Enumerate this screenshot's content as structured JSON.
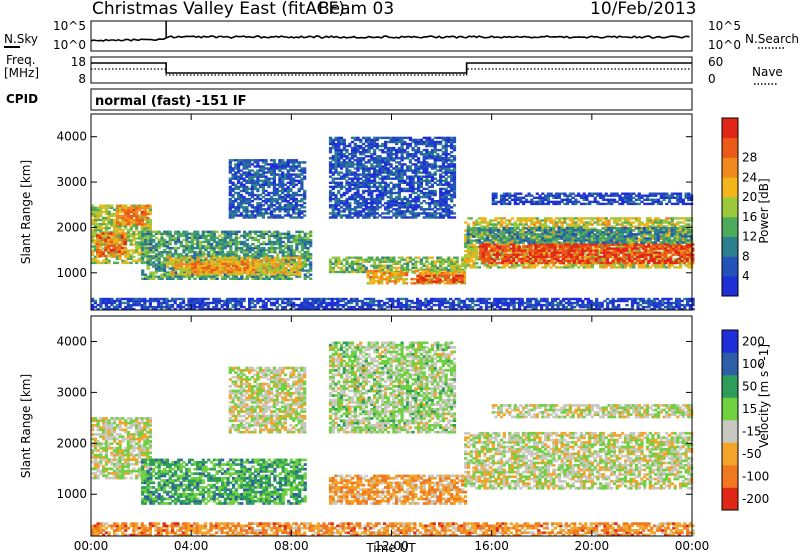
{
  "header": {
    "station": "Christmas Valley East (fitACF)",
    "beam": "Beam 03",
    "date": "10/Feb/2013"
  },
  "params": {
    "nsky_label": "N.Sky",
    "nsearch_label": "N.Search",
    "freq_label": "Freq.",
    "freq_unit": "[MHz]",
    "nave_label": "Nave",
    "cpid_label": "CPID",
    "cpid_value": "normal (fast) -151 IF",
    "noise_ticks": [
      "10^5",
      "10^0"
    ],
    "freq_ticks": [
      "18",
      "8"
    ],
    "nave_ticks": [
      "60",
      "0"
    ]
  },
  "chart_data": [
    {
      "type": "heatmap",
      "name": "power",
      "ylabel": "Slant Range [km]",
      "xlabel": "Time UT",
      "x_ticks": [
        "00:00",
        "04:00",
        "08:00",
        "12:00",
        "16:00",
        "20:00",
        "00:00"
      ],
      "y_ticks": [
        "1000",
        "2000",
        "3000",
        "4000"
      ],
      "xlim": [
        0,
        24
      ],
      "ylim": [
        180,
        4500
      ],
      "grid": false,
      "colorbar": {
        "label": "Power [dB]",
        "ticks": [
          "4",
          "8",
          "12",
          "16",
          "20",
          "24",
          "28"
        ],
        "colors": [
          "#1f2fd8",
          "#2352b8",
          "#2d7f8f",
          "#4caa5a",
          "#9cc93c",
          "#f2b51a",
          "#f08a1c",
          "#ea5b1a",
          "#e22718"
        ]
      },
      "regions": [
        {
          "t0": 0.0,
          "t1": 2.4,
          "r0": 1200,
          "r1": 2500,
          "level": 0.5
        },
        {
          "t0": 0.2,
          "t1": 1.4,
          "r0": 1350,
          "r1": 1850,
          "level": 0.78
        },
        {
          "t0": 1.0,
          "t1": 2.3,
          "r0": 2050,
          "r1": 2500,
          "level": 0.75
        },
        {
          "t0": 2.0,
          "t1": 8.8,
          "r0": 850,
          "r1": 1900,
          "level": 0.35
        },
        {
          "t0": 3.0,
          "t1": 8.3,
          "r0": 950,
          "r1": 1350,
          "level": 0.6
        },
        {
          "t0": 4.0,
          "t1": 6.5,
          "r0": 1000,
          "r1": 1250,
          "level": 0.72
        },
        {
          "t0": 9.5,
          "t1": 14.9,
          "r0": 1000,
          "r1": 1350,
          "level": 0.45
        },
        {
          "t0": 11.0,
          "t1": 14.9,
          "r0": 750,
          "r1": 1050,
          "level": 0.65
        },
        {
          "t0": 13.0,
          "t1": 14.8,
          "r0": 780,
          "r1": 930,
          "level": 0.9
        },
        {
          "t0": 14.9,
          "t1": 24.0,
          "r0": 1100,
          "r1": 2200,
          "level": 0.55
        },
        {
          "t0": 15.5,
          "t1": 24.0,
          "r0": 1200,
          "r1": 1650,
          "level": 0.9
        },
        {
          "t0": 15.0,
          "t1": 24.0,
          "r0": 1650,
          "r1": 2000,
          "level": 0.3
        },
        {
          "t0": 5.5,
          "t1": 8.5,
          "r0": 2200,
          "r1": 3500,
          "level": 0.18
        },
        {
          "t0": 9.5,
          "t1": 14.5,
          "r0": 2200,
          "r1": 4000,
          "level": 0.15
        },
        {
          "t0": 16.0,
          "t1": 24.0,
          "r0": 2500,
          "r1": 2750,
          "level": 0.12
        },
        {
          "t0": 0.0,
          "t1": 24.0,
          "r0": 180,
          "r1": 450,
          "level": 0.1
        }
      ]
    },
    {
      "type": "heatmap",
      "name": "velocity",
      "ylabel": "Slant Range [km]",
      "xlabel": "Time UT",
      "x_ticks": [
        "00:00",
        "04:00",
        "08:00",
        "12:00",
        "16:00",
        "20:00",
        "00:00"
      ],
      "y_ticks": [
        "1000",
        "2000",
        "3000",
        "4000"
      ],
      "xlim": [
        0,
        24
      ],
      "ylim": [
        180,
        4500
      ],
      "grid": false,
      "colorbar": {
        "label": "Velocity [m s^-1]",
        "ticks": [
          "200",
          "100",
          "50",
          "15",
          "-15",
          "-50",
          "-100",
          "-200"
        ],
        "colors": [
          "#1f2fd8",
          "#2c5fa6",
          "#2f9d5a",
          "#6fd040",
          "#c8c8c0",
          "#f2a52a",
          "#f07820",
          "#e02818"
        ]
      },
      "regions": [
        {
          "t0": 0.0,
          "t1": 2.4,
          "r0": 1300,
          "r1": 2500,
          "level": 0.55
        },
        {
          "t0": 2.0,
          "t1": 8.5,
          "r0": 800,
          "r1": 1700,
          "level": 0.35
        },
        {
          "t0": 9.5,
          "t1": 14.9,
          "r0": 800,
          "r1": 1350,
          "level": 0.72
        },
        {
          "t0": 14.9,
          "t1": 24.0,
          "r0": 1100,
          "r1": 2200,
          "level": 0.55
        },
        {
          "t0": 5.5,
          "t1": 8.5,
          "r0": 2200,
          "r1": 3500,
          "level": 0.55
        },
        {
          "t0": 9.5,
          "t1": 14.5,
          "r0": 2200,
          "r1": 4000,
          "level": 0.5
        },
        {
          "t0": 16.0,
          "t1": 24.0,
          "r0": 2500,
          "r1": 2750,
          "level": 0.55
        },
        {
          "t0": 0.0,
          "t1": 24.0,
          "r0": 180,
          "r1": 450,
          "level": 0.75
        }
      ]
    }
  ]
}
